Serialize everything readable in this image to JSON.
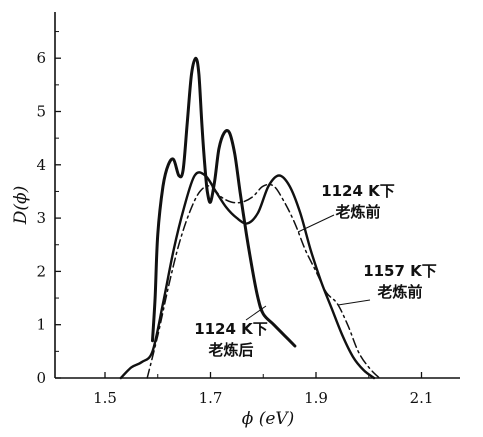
{
  "chart_data": {
    "type": "line",
    "xlabel": "ϕ (eV)",
    "ylabel": "D(ϕ)",
    "xlim": [
      1.4,
      2.2
    ],
    "ylim": [
      0,
      7
    ],
    "x_ticks": [
      "1.5",
      "1.7",
      "1.9",
      "2.1"
    ],
    "y_ticks": [
      "0",
      "1",
      "2",
      "3",
      "4",
      "5",
      "6"
    ],
    "grid": false,
    "series": [
      {
        "name": "1124 K下 老炼后",
        "style": "solid",
        "points": [
          [
            1.59,
            0.7
          ],
          [
            1.595,
            1.5
          ],
          [
            1.6,
            2.7
          ],
          [
            1.61,
            3.6
          ],
          [
            1.62,
            4.0
          ],
          [
            1.63,
            4.1
          ],
          [
            1.64,
            3.8
          ],
          [
            1.648,
            3.9
          ],
          [
            1.656,
            4.8
          ],
          [
            1.664,
            5.7
          ],
          [
            1.672,
            6.0
          ],
          [
            1.678,
            5.7
          ],
          [
            1.684,
            4.7
          ],
          [
            1.69,
            3.9
          ],
          [
            1.694,
            3.5
          ],
          [
            1.7,
            3.3
          ],
          [
            1.708,
            3.7
          ],
          [
            1.716,
            4.3
          ],
          [
            1.726,
            4.6
          ],
          [
            1.736,
            4.6
          ],
          [
            1.746,
            4.2
          ],
          [
            1.756,
            3.5
          ],
          [
            1.768,
            2.7
          ],
          [
            1.78,
            2.0
          ],
          [
            1.79,
            1.5
          ],
          [
            1.8,
            1.2
          ],
          [
            1.82,
            1.0
          ],
          [
            1.84,
            0.8
          ],
          [
            1.86,
            0.6
          ]
        ]
      },
      {
        "name": "1124 K下 老炼前",
        "style": "solid",
        "points": [
          [
            1.53,
            0.0
          ],
          [
            1.55,
            0.2
          ],
          [
            1.57,
            0.3
          ],
          [
            1.59,
            0.5
          ],
          [
            1.61,
            1.4
          ],
          [
            1.63,
            2.4
          ],
          [
            1.65,
            3.2
          ],
          [
            1.67,
            3.8
          ],
          [
            1.69,
            3.8
          ],
          [
            1.71,
            3.5
          ],
          [
            1.73,
            3.2
          ],
          [
            1.75,
            3.0
          ],
          [
            1.77,
            2.9
          ],
          [
            1.79,
            3.1
          ],
          [
            1.81,
            3.6
          ],
          [
            1.83,
            3.8
          ],
          [
            1.85,
            3.6
          ],
          [
            1.87,
            3.1
          ],
          [
            1.89,
            2.4
          ],
          [
            1.91,
            1.8
          ],
          [
            1.93,
            1.3
          ],
          [
            1.95,
            0.8
          ],
          [
            1.97,
            0.4
          ],
          [
            1.99,
            0.15
          ],
          [
            2.01,
            0.0
          ]
        ]
      },
      {
        "name": "1157 K下 老炼前",
        "style": "dashdot",
        "points": [
          [
            1.58,
            0.0
          ],
          [
            1.6,
            0.8
          ],
          [
            1.62,
            1.7
          ],
          [
            1.64,
            2.5
          ],
          [
            1.66,
            3.1
          ],
          [
            1.68,
            3.5
          ],
          [
            1.7,
            3.6
          ],
          [
            1.72,
            3.4
          ],
          [
            1.74,
            3.3
          ],
          [
            1.76,
            3.3
          ],
          [
            1.78,
            3.4
          ],
          [
            1.8,
            3.6
          ],
          [
            1.82,
            3.6
          ],
          [
            1.84,
            3.3
          ],
          [
            1.86,
            2.9
          ],
          [
            1.88,
            2.4
          ],
          [
            1.9,
            2.0
          ],
          [
            1.92,
            1.6
          ],
          [
            1.94,
            1.4
          ],
          [
            1.96,
            1.0
          ],
          [
            1.98,
            0.5
          ],
          [
            2.0,
            0.2
          ],
          [
            2.02,
            0.0
          ]
        ]
      }
    ],
    "annotations": [
      {
        "lines": [
          "1124 K下",
          "老炼前"
        ],
        "target_series": 1
      },
      {
        "lines": [
          "1157 K下",
          "老炼前"
        ],
        "target_series": 2
      },
      {
        "lines": [
          "1124 K下",
          "老炼后"
        ],
        "target_series": 0
      }
    ]
  }
}
